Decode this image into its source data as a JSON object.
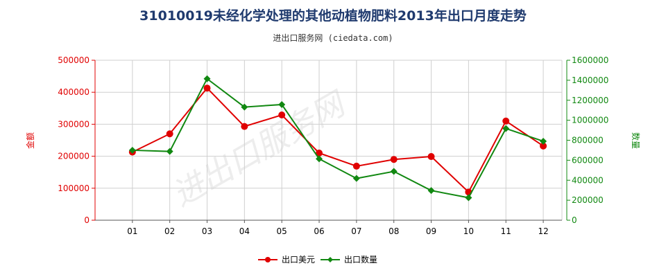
{
  "title": "31010019未经化学处理的其他动植物肥料2013年出口月度走势",
  "subtitle": "进出口服务网 (ciedata.com)",
  "watermark": "进出口服务网",
  "chart_data": {
    "type": "line",
    "categories": [
      "01",
      "02",
      "03",
      "04",
      "05",
      "06",
      "07",
      "08",
      "09",
      "10",
      "11",
      "12"
    ],
    "y_left": {
      "label": "金额",
      "ylim": [
        0,
        500000
      ],
      "ticks": [
        "0",
        "100000",
        "200000",
        "300000",
        "400000",
        "500000"
      ],
      "color": "#e00000"
    },
    "y_right": {
      "label": "数量",
      "ylim": [
        0,
        1600000
      ],
      "ticks": [
        "0",
        "200000",
        "400000",
        "600000",
        "800000",
        "1000000",
        "1200000",
        "1400000",
        "1600000"
      ],
      "color": "#118811"
    },
    "grid": true,
    "legend_position": "bottom-center",
    "series": [
      {
        "name": "出口美元",
        "axis": "left",
        "color": "#e00000",
        "values": [
          213000,
          270000,
          413000,
          293000,
          329000,
          210000,
          169000,
          190000,
          199000,
          88000,
          310000,
          232000
        ]
      },
      {
        "name": "出口数量",
        "axis": "right",
        "color": "#118811",
        "values": [
          700000,
          688000,
          1415000,
          1132000,
          1157000,
          614000,
          418000,
          488000,
          297000,
          225000,
          917000,
          790000
        ]
      }
    ]
  }
}
